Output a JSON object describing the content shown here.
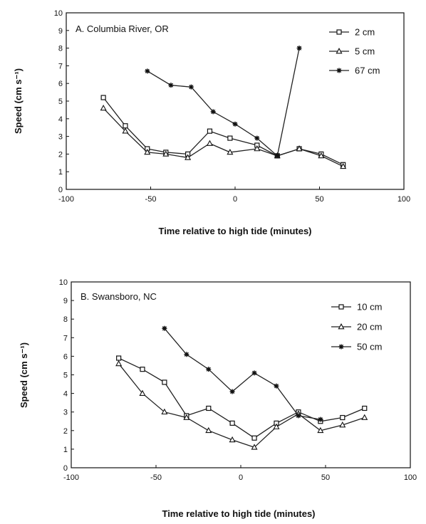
{
  "chart_data": [
    {
      "type": "line",
      "title": "A.  Columbia River, OR",
      "xlabel": "Time relative to high tide (minutes)",
      "ylabel": "Speed (cm s⁻¹)",
      "xlim": [
        -100,
        100
      ],
      "ylim": [
        0,
        10
      ],
      "xticks": [
        "-100",
        "-50",
        "0",
        "50",
        "100"
      ],
      "yticks": [
        "0",
        "1",
        "2",
        "3",
        "4",
        "5",
        "6",
        "7",
        "8",
        "9",
        "10"
      ],
      "legend_position": "top-right",
      "series": [
        {
          "name": "2 cm",
          "marker": "square",
          "x": [
            -78,
            -65,
            -52,
            -41,
            -28,
            -15,
            -3,
            13,
            25,
            38,
            51,
            64
          ],
          "y": [
            5.2,
            3.6,
            2.3,
            2.1,
            2.0,
            3.3,
            2.9,
            2.5,
            1.9,
            2.3,
            2.0,
            1.4
          ]
        },
        {
          "name": "5 cm",
          "marker": "triangle",
          "x": [
            -78,
            -65,
            -52,
            -41,
            -28,
            -15,
            -3,
            13,
            25,
            38,
            51,
            64
          ],
          "y": [
            4.6,
            3.3,
            2.1,
            2.0,
            1.8,
            2.6,
            2.1,
            2.3,
            1.9,
            2.3,
            1.9,
            1.3
          ]
        },
        {
          "name": "67 cm",
          "marker": "star",
          "x": [
            -52,
            -38,
            -26,
            -13,
            0,
            13,
            25,
            38
          ],
          "y": [
            6.7,
            5.9,
            5.8,
            4.4,
            3.7,
            2.9,
            1.9,
            8.0
          ]
        }
      ]
    },
    {
      "type": "line",
      "title": "B.  Swansboro, NC",
      "xlabel": "Time relative to high tide (minutes)",
      "ylabel": "Speed (cm s⁻¹)",
      "xlim": [
        -100,
        100
      ],
      "ylim": [
        0,
        10
      ],
      "xticks": [
        "-100",
        "-50",
        "0",
        "50",
        "100"
      ],
      "yticks": [
        "0",
        "1",
        "2",
        "3",
        "4",
        "5",
        "6",
        "7",
        "8",
        "9",
        "10"
      ],
      "legend_position": "top-right",
      "series": [
        {
          "name": "10 cm",
          "marker": "square",
          "x": [
            -72,
            -58,
            -45,
            -32,
            -19,
            -5,
            8,
            21,
            34,
            47,
            60,
            73
          ],
          "y": [
            5.9,
            5.3,
            4.6,
            2.8,
            3.2,
            2.4,
            1.6,
            2.4,
            3.0,
            2.5,
            2.7,
            3.2
          ]
        },
        {
          "name": "20 cm",
          "marker": "triangle",
          "x": [
            -72,
            -58,
            -45,
            -32,
            -19,
            -5,
            8,
            21,
            34,
            47,
            60,
            73
          ],
          "y": [
            5.6,
            4.0,
            3.0,
            2.7,
            2.0,
            1.5,
            1.1,
            2.2,
            2.9,
            2.0,
            2.3,
            2.7
          ]
        },
        {
          "name": "50 cm",
          "marker": "star",
          "x": [
            -45,
            -32,
            -19,
            -5,
            8,
            21,
            34,
            47
          ],
          "y": [
            7.5,
            6.1,
            5.3,
            4.1,
            5.1,
            4.4,
            2.8,
            2.6
          ]
        }
      ]
    }
  ]
}
